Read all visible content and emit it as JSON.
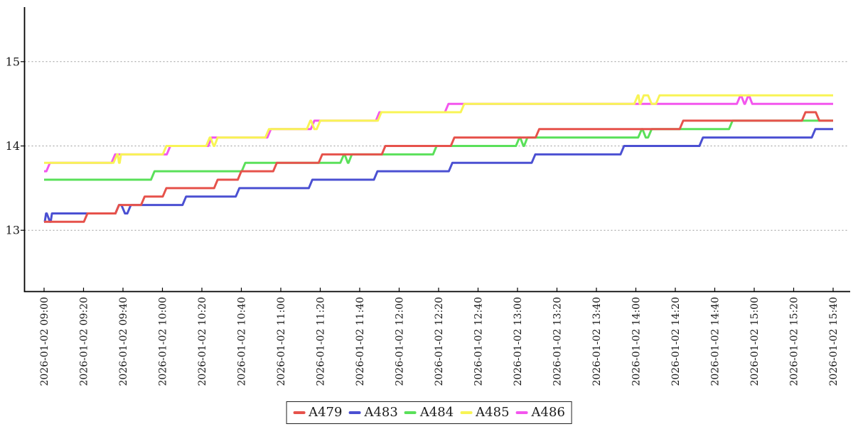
{
  "chart_data": {
    "type": "line",
    "title": "",
    "xlabel": "",
    "ylabel": "",
    "grid": "horizontal-dashed",
    "legend_position": "bottom-center",
    "x_axis": {
      "range_minutes": [
        0,
        400
      ],
      "tick_minutes": [
        0,
        20,
        40,
        60,
        80,
        100,
        120,
        140,
        160,
        180,
        200,
        220,
        240,
        260,
        280,
        300,
        320,
        340,
        360,
        380,
        400
      ],
      "tick_labels": [
        "2026-01-02 09:00",
        "2026-01-02 09:20",
        "2026-01-02 09:40",
        "2026-01-02 10:00",
        "2026-01-02 10:20",
        "2026-01-02 10:40",
        "2026-01-02 11:00",
        "2026-01-02 11:20",
        "2026-01-02 11:40",
        "2026-01-02 12:00",
        "2026-01-02 12:20",
        "2026-01-02 12:40",
        "2026-01-02 13:00",
        "2026-01-02 13:20",
        "2026-01-02 13:40",
        "2026-01-02 14:00",
        "2026-01-02 14:20",
        "2026-01-02 14:40",
        "2026-01-02 15:00",
        "2026-01-02 15:20",
        "2026-01-02 15:40"
      ]
    },
    "y_axis": {
      "ticks": [
        15,
        14,
        13
      ],
      "tick_labels": [
        "15",
        "14",
        "13"
      ],
      "ylim": [
        12.3,
        15.65
      ]
    },
    "colors": {
      "axis": "#000000",
      "grid": "#999999",
      "text": "#1a1a1a"
    },
    "draw_order": [
      "A483",
      "A484",
      "A486",
      "A479",
      "A485"
    ],
    "series": [
      {
        "name": "A479",
        "color": "#e6524b",
        "points": [
          [
            0,
            13.1
          ],
          [
            22,
            13.2
          ],
          [
            38,
            13.3
          ],
          [
            51,
            13.4
          ],
          [
            62,
            13.5
          ],
          [
            88,
            13.6
          ],
          [
            100,
            13.7
          ],
          [
            118,
            13.8
          ],
          [
            141,
            13.9
          ],
          [
            173,
            14.0
          ],
          [
            208,
            14.1
          ],
          [
            251,
            14.2
          ],
          [
            324,
            14.3
          ],
          [
            386,
            14.4
          ],
          [
            393,
            14.3
          ]
        ]
      },
      {
        "name": "A483",
        "color": "#4b50d2",
        "points": [
          [
            0,
            13.1
          ],
          [
            1,
            13.2
          ],
          [
            3,
            13.1
          ],
          [
            4,
            13.2
          ],
          [
            38,
            13.3
          ],
          [
            41,
            13.2
          ],
          [
            44,
            13.3
          ],
          [
            72,
            13.4
          ],
          [
            99,
            13.5
          ],
          [
            136,
            13.6
          ],
          [
            169,
            13.7
          ],
          [
            207,
            13.8
          ],
          [
            249,
            13.9
          ],
          [
            294,
            14.0
          ],
          [
            334,
            14.1
          ],
          [
            391,
            14.2
          ]
        ]
      },
      {
        "name": "A484",
        "color": "#5ae05a",
        "points": [
          [
            0,
            13.6
          ],
          [
            56,
            13.7
          ],
          [
            102,
            13.8
          ],
          [
            152,
            13.9
          ],
          [
            154,
            13.8
          ],
          [
            156,
            13.9
          ],
          [
            199,
            14.0
          ],
          [
            241,
            14.1
          ],
          [
            243,
            14.0
          ],
          [
            245,
            14.1
          ],
          [
            303,
            14.2
          ],
          [
            305,
            14.1
          ],
          [
            308,
            14.2
          ],
          [
            349,
            14.3
          ]
        ]
      },
      {
        "name": "A485",
        "color": "#f8f455",
        "points": [
          [
            0,
            13.8
          ],
          [
            37,
            13.9
          ],
          [
            38,
            13.8
          ],
          [
            39,
            13.9
          ],
          [
            62,
            14.0
          ],
          [
            84,
            14.1
          ],
          [
            86,
            14.0
          ],
          [
            88,
            14.1
          ],
          [
            114,
            14.2
          ],
          [
            135,
            14.3
          ],
          [
            137,
            14.2
          ],
          [
            140,
            14.3
          ],
          [
            171,
            14.4
          ],
          [
            213,
            14.5
          ],
          [
            301,
            14.6
          ],
          [
            302,
            14.5
          ],
          [
            304,
            14.6
          ],
          [
            308,
            14.5
          ],
          [
            312,
            14.6
          ]
        ]
      },
      {
        "name": "A486",
        "color": "#f356ee",
        "points": [
          [
            0,
            13.7
          ],
          [
            3,
            13.8
          ],
          [
            36,
            13.9
          ],
          [
            64,
            14.0
          ],
          [
            85,
            14.1
          ],
          [
            115,
            14.2
          ],
          [
            137,
            14.3
          ],
          [
            170,
            14.4
          ],
          [
            205,
            14.5
          ],
          [
            353,
            14.6
          ],
          [
            355,
            14.5
          ],
          [
            357,
            14.6
          ],
          [
            359,
            14.5
          ]
        ]
      }
    ]
  }
}
